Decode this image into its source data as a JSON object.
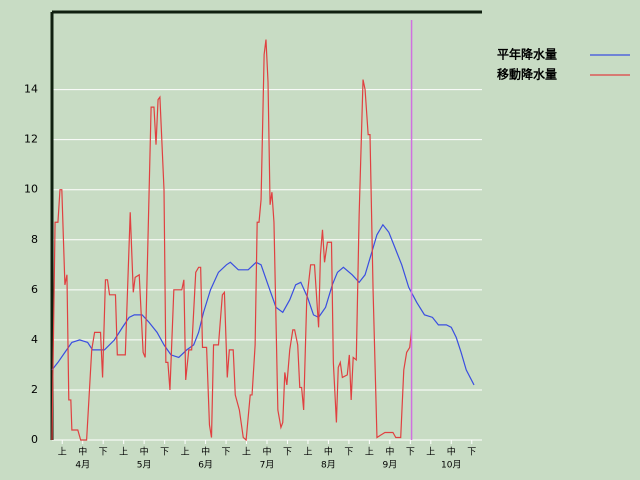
{
  "chart_data": {
    "type": "line",
    "xlim": [
      0,
      21
    ],
    "ylim": [
      0,
      17.1
    ],
    "yticks": [
      0,
      2,
      4,
      6,
      8,
      10,
      12,
      14
    ],
    "xticks": [
      {
        "value": 0.5,
        "label": "上"
      },
      {
        "value": 1.5,
        "label": "中"
      },
      {
        "value": 2.5,
        "label": "下"
      },
      {
        "value": 3.5,
        "label": "上"
      },
      {
        "value": 4.5,
        "label": "中"
      },
      {
        "value": 5.5,
        "label": "下"
      },
      {
        "value": 6.5,
        "label": "上"
      },
      {
        "value": 7.5,
        "label": "中"
      },
      {
        "value": 8.5,
        "label": "下"
      },
      {
        "value": 9.5,
        "label": "上"
      },
      {
        "value": 10.5,
        "label": "中"
      },
      {
        "value": 11.5,
        "label": "下"
      },
      {
        "value": 12.5,
        "label": "上"
      },
      {
        "value": 13.5,
        "label": "中"
      },
      {
        "value": 14.5,
        "label": "下"
      },
      {
        "value": 15.5,
        "label": "上"
      },
      {
        "value": 16.5,
        "label": "中"
      },
      {
        "value": 17.5,
        "label": "下"
      },
      {
        "value": 18.5,
        "label": "上"
      },
      {
        "value": 19.5,
        "label": "中"
      },
      {
        "value": 20.5,
        "label": "下"
      }
    ],
    "month_labels": [
      {
        "value": 1.5,
        "label": "4月"
      },
      {
        "value": 4.5,
        "label": "5月"
      },
      {
        "value": 7.5,
        "label": "6月"
      },
      {
        "value": 10.5,
        "label": "7月"
      },
      {
        "value": 13.5,
        "label": "8月"
      },
      {
        "value": 16.5,
        "label": "9月"
      },
      {
        "value": 19.5,
        "label": "10月"
      }
    ],
    "grid": true,
    "legend": "right",
    "marker_x": 17.56,
    "marker_color": "#d070e0",
    "series": [
      {
        "name": "平年降水量",
        "color": "#3a4ee0",
        "x": [
          0,
          0.29,
          0.63,
          0.97,
          1.35,
          1.74,
          1.98,
          2.56,
          3.05,
          3.44,
          3.77,
          4.02,
          4.4,
          4.74,
          5.13,
          5.47,
          5.81,
          6.19,
          6.58,
          6.92,
          7.16,
          7.4,
          7.74,
          8.13,
          8.52,
          8.71,
          9.1,
          9.58,
          9.97,
          10.21,
          10.55,
          10.94,
          11.27,
          11.61,
          11.9,
          12.15,
          12.48,
          12.77,
          13.02,
          13.36,
          13.69,
          13.94,
          14.23,
          14.66,
          15.0,
          15.29,
          15.58,
          15.87,
          16.16,
          16.45,
          16.74,
          17.08,
          17.42,
          17.81,
          18.19,
          18.58,
          18.87,
          19.26,
          19.5,
          19.74,
          19.98,
          20.23,
          20.61
        ],
        "values": [
          2.8,
          3.1,
          3.5,
          3.9,
          4,
          3.9,
          3.6,
          3.6,
          4,
          4.5,
          4.9,
          5,
          5,
          4.7,
          4.3,
          3.8,
          3.4,
          3.3,
          3.6,
          3.8,
          4.3,
          5.1,
          6,
          6.7,
          7,
          7.1,
          6.8,
          6.8,
          7.1,
          7,
          6.2,
          5.3,
          5.1,
          5.6,
          6.2,
          6.3,
          5.7,
          5,
          4.9,
          5.3,
          6.2,
          6.7,
          6.9,
          6.6,
          6.3,
          6.6,
          7.4,
          8.2,
          8.6,
          8.3,
          7.7,
          7,
          6.1,
          5.5,
          5.0,
          4.9,
          4.6,
          4.6,
          4.5,
          4.1,
          3.5,
          2.8,
          2.2
        ]
      },
      {
        "name": "移動降水量",
        "color": "#e04040",
        "x": [
          0,
          0.15,
          0.29,
          0.39,
          0.48,
          0.63,
          0.73,
          0.82,
          0.92,
          0.97,
          1.26,
          1.4,
          1.69,
          1.94,
          2.08,
          2.37,
          2.47,
          2.61,
          2.71,
          2.81,
          3.1,
          3.19,
          3.58,
          3.82,
          3.97,
          4.06,
          4.26,
          4.45,
          4.55,
          4.84,
          4.98,
          5.08,
          5.18,
          5.27,
          5.47,
          5.56,
          5.66,
          5.76,
          5.95,
          6.34,
          6.44,
          6.53,
          6.68,
          6.82,
          7.02,
          7.16,
          7.26,
          7.35,
          7.55,
          7.69,
          7.79,
          7.89,
          8.13,
          8.32,
          8.42,
          8.56,
          8.66,
          8.85,
          8.95,
          9.15,
          9.34,
          9.48,
          9.68,
          9.77,
          9.92,
          10.02,
          10.11,
          10.21,
          10.36,
          10.45,
          10.55,
          10.65,
          10.74,
          10.84,
          11.03,
          11.18,
          11.27,
          11.37,
          11.47,
          11.61,
          11.76,
          11.85,
          12.0,
          12.1,
          12.19,
          12.29,
          12.44,
          12.63,
          12.82,
          13.02,
          13.11,
          13.21,
          13.31,
          13.45,
          13.65,
          13.74,
          13.89,
          13.98,
          14.08,
          14.18,
          14.42,
          14.52,
          14.61,
          14.71,
          14.86,
          15.0,
          15.19,
          15.29,
          15.44,
          15.53,
          15.68,
          15.87,
          16.06,
          16.26,
          16.65,
          16.79,
          17.03,
          17.18,
          17.32,
          17.47,
          17.56
        ],
        "values": [
          0,
          8.7,
          8.7,
          10,
          10,
          6.2,
          6.6,
          1.6,
          1.6,
          0.4,
          0.4,
          0,
          0,
          3.6,
          4.3,
          4.3,
          2.5,
          6.4,
          6.4,
          5.8,
          5.8,
          3.4,
          3.4,
          9.1,
          5.9,
          6.5,
          6.6,
          3.5,
          3.3,
          13.3,
          13.3,
          11.8,
          13.6,
          13.7,
          10,
          3.1,
          3.1,
          2,
          6,
          6,
          6.4,
          2.4,
          3.6,
          3.6,
          6.7,
          6.9,
          6.9,
          3.7,
          3.7,
          0.6,
          0.1,
          3.8,
          3.8,
          5.8,
          5.9,
          2.5,
          3.6,
          3.6,
          1.8,
          1.2,
          0.1,
          0,
          1.8,
          1.8,
          3.8,
          8.7,
          8.7,
          9.6,
          15.4,
          16,
          14.3,
          9.4,
          9.9,
          8.7,
          1.2,
          0.5,
          0.7,
          2.7,
          2.2,
          3.6,
          4.4,
          4.4,
          3.8,
          2.1,
          2.1,
          1.2,
          5.6,
          7,
          7,
          4.5,
          7.4,
          8.4,
          7.1,
          7.9,
          7.9,
          3.1,
          0.7,
          2.9,
          3.1,
          2.5,
          2.6,
          3.4,
          1.6,
          3.3,
          3.2,
          9,
          14.4,
          14,
          12.2,
          12.2,
          6,
          0.1,
          0.2,
          0.3,
          0.3,
          0.1,
          0.1,
          2.8,
          3.5,
          3.7,
          4.4
        ]
      }
    ]
  }
}
